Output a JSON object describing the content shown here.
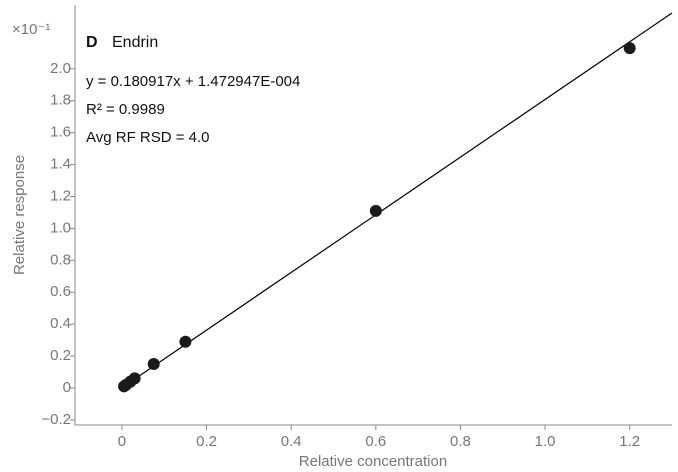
{
  "chart_data": {
    "type": "scatter",
    "panel_label": "D",
    "title": "Endrin",
    "annotations": [
      "y = 0.180917x + 1.472947E-004",
      "R² = 0.9989",
      "Avg RF RSD = 4.0"
    ],
    "y_multiplier": "×10⁻¹",
    "xlabel": "Relative concentration",
    "ylabel": "Relative response",
    "x": [
      0.005,
      0.01,
      0.02,
      0.03,
      0.075,
      0.15,
      0.6,
      1.2
    ],
    "values": [
      0.01,
      0.02,
      0.04,
      0.06,
      0.15,
      0.29,
      1.11,
      2.13
    ],
    "color": "#1a1a1a",
    "fit_line": {
      "x": [
        0,
        1.3
      ],
      "y": [
        0.0015,
        2.35
      ],
      "color": "#000000"
    },
    "xlim": [
      -0.111,
      1.3
    ],
    "ylim": [
      -0.232,
      2.4
    ],
    "xticks": [
      0,
      0.2,
      0.4,
      0.6,
      0.8,
      {
        "value": 1,
        "label": "1.0"
      },
      1.2
    ],
    "yticks": [
      {
        "value": -0.2,
        "label": "−0.2"
      },
      0,
      0.2,
      0.4,
      0.6,
      0.8,
      {
        "value": 1,
        "label": "1.0"
      },
      1.2,
      1.4,
      1.6,
      1.8,
      {
        "value": 2,
        "label": "2.0"
      }
    ]
  }
}
